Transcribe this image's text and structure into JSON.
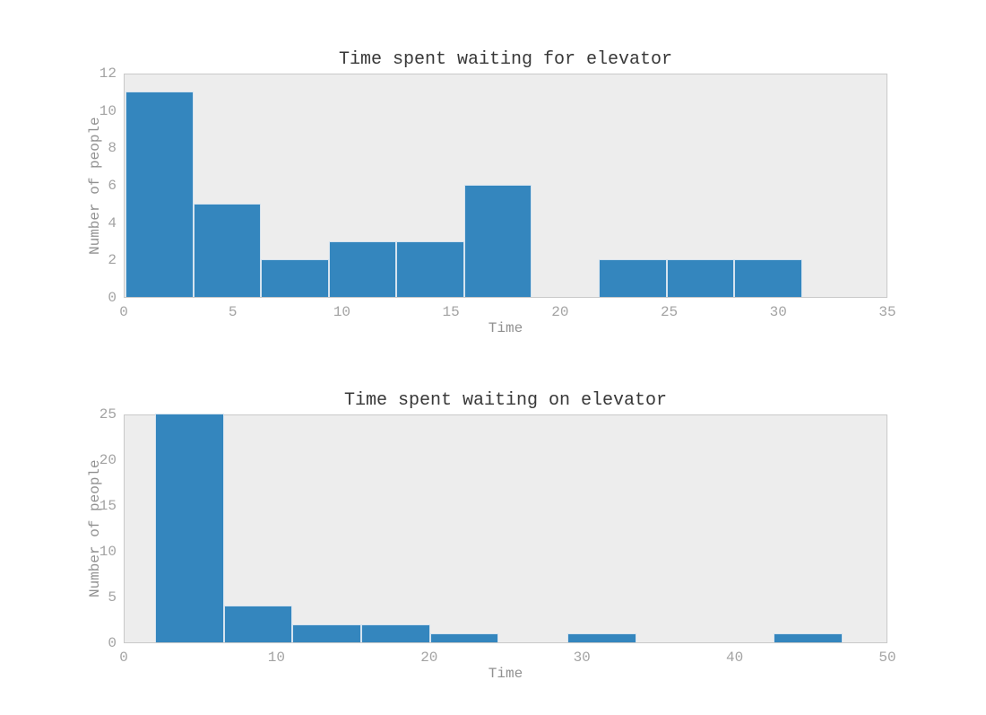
{
  "figure": {
    "background": "#ffffff"
  },
  "colors": {
    "bar_fill": "#3486be",
    "bar_edge": "#d5e3ef",
    "plot_background": "#ededed",
    "spine": "#c9c9c9",
    "tick_label": "#a3a3a3",
    "axis_label": "#919191",
    "title": "#383838"
  },
  "chart_data": [
    {
      "type": "bar",
      "chart_kind": "histogram",
      "title": "Time spent waiting for elevator",
      "xlabel": "Time",
      "ylabel": "Number of people",
      "bin_edges": [
        0.05,
        3.15,
        6.25,
        9.35,
        12.45,
        15.55,
        18.65,
        21.75,
        24.85,
        27.95,
        31.05
      ],
      "counts": [
        11,
        5,
        2,
        3,
        3,
        6,
        0,
        2,
        2,
        2
      ],
      "xlim": [
        0,
        35
      ],
      "ylim": [
        0,
        12
      ],
      "xticks": [
        0,
        5,
        10,
        15,
        20,
        25,
        30,
        35
      ],
      "yticks": [
        0,
        2,
        4,
        6,
        8,
        10,
        12
      ],
      "grid": false,
      "legend": "none"
    },
    {
      "type": "bar",
      "chart_kind": "histogram",
      "title": "Time spent waiting on elevator",
      "xlabel": "Time",
      "ylabel": "Number of people",
      "bin_edges": [
        2.0,
        6.5,
        11.0,
        15.5,
        20.0,
        24.5,
        29.0,
        33.5,
        38.0,
        42.5,
        47.0
      ],
      "counts": [
        25,
        4,
        2,
        2,
        1,
        0,
        1,
        0,
        0,
        1
      ],
      "xlim": [
        0,
        50
      ],
      "ylim": [
        0,
        25
      ],
      "xticks": [
        0,
        10,
        20,
        30,
        40,
        50
      ],
      "yticks": [
        0,
        5,
        10,
        15,
        20,
        25
      ],
      "grid": false,
      "legend": "none"
    }
  ]
}
